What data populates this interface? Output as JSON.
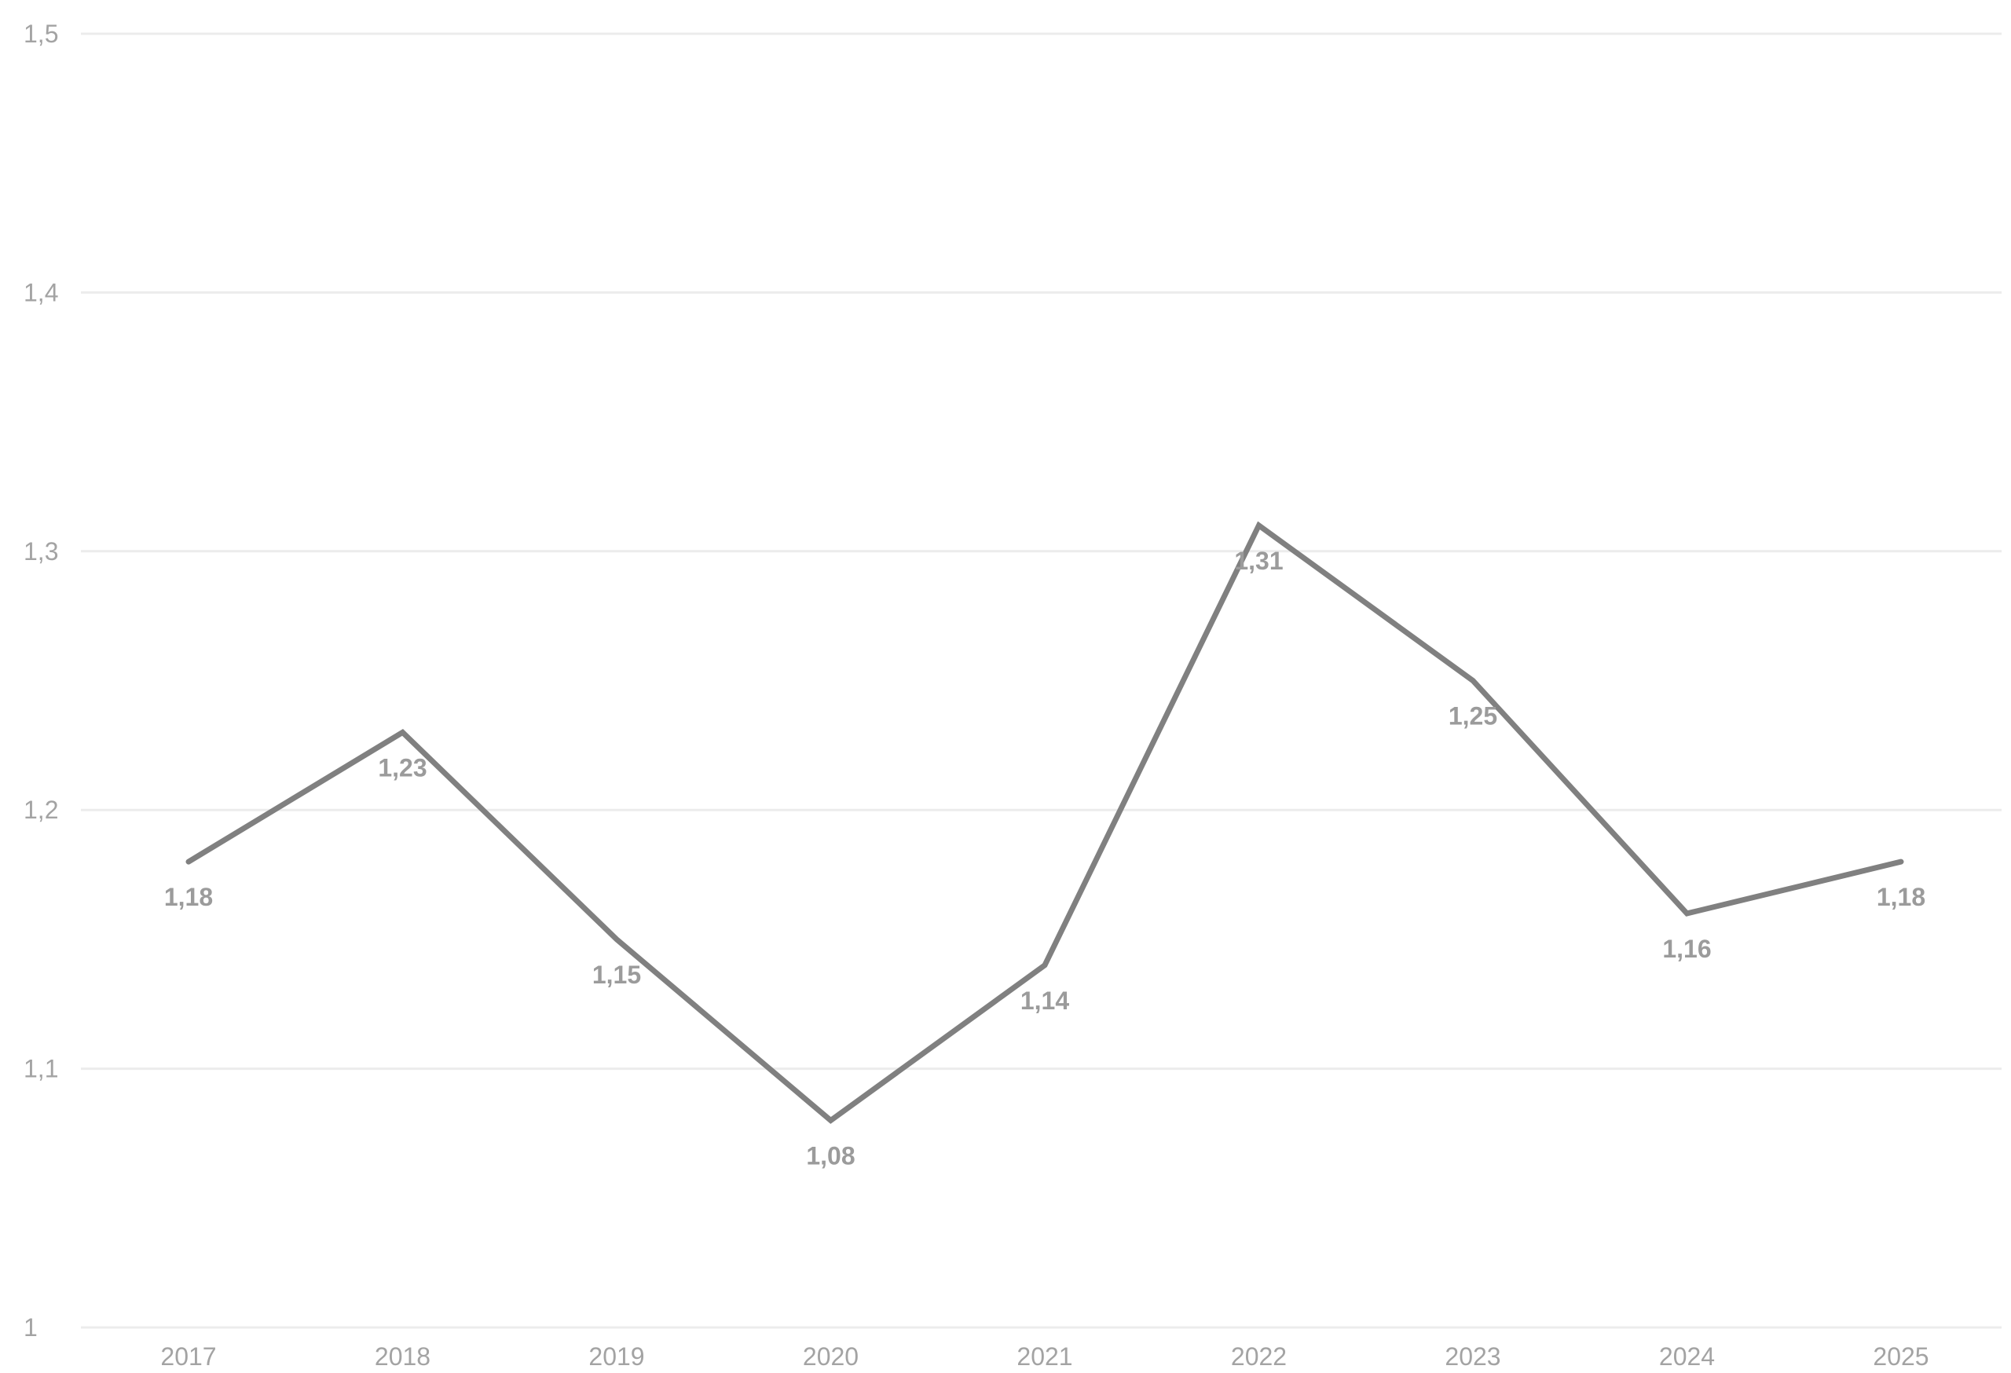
{
  "chart_data": {
    "type": "line",
    "categories": [
      "2017",
      "2018",
      "2019",
      "2020",
      "2021",
      "2022",
      "2023",
      "2024",
      "2025"
    ],
    "series": [
      {
        "values": [
          1.18,
          1.23,
          1.15,
          1.08,
          1.14,
          1.31,
          1.25,
          1.16,
          1.18
        ],
        "labels": [
          "1,18",
          "1,23",
          "1,15",
          "1,08",
          "1,14",
          "1,31",
          "1,25",
          "1,16",
          "1,18"
        ]
      }
    ],
    "title": "",
    "xlabel": "",
    "ylabel": "",
    "ylim": [
      1,
      1.5
    ],
    "yticks": [
      1,
      1.1,
      1.2,
      1.3,
      1.4,
      1.5
    ],
    "ytick_labels": [
      "1",
      "1,1",
      "1,2",
      "1,3",
      "1,4",
      "1,5"
    ],
    "grid": true,
    "legend": "none",
    "colors": {
      "line": "#808080",
      "grid": "#ececec",
      "tick_text": "#a3a3a3",
      "label_text": "#9b9b9b"
    }
  }
}
